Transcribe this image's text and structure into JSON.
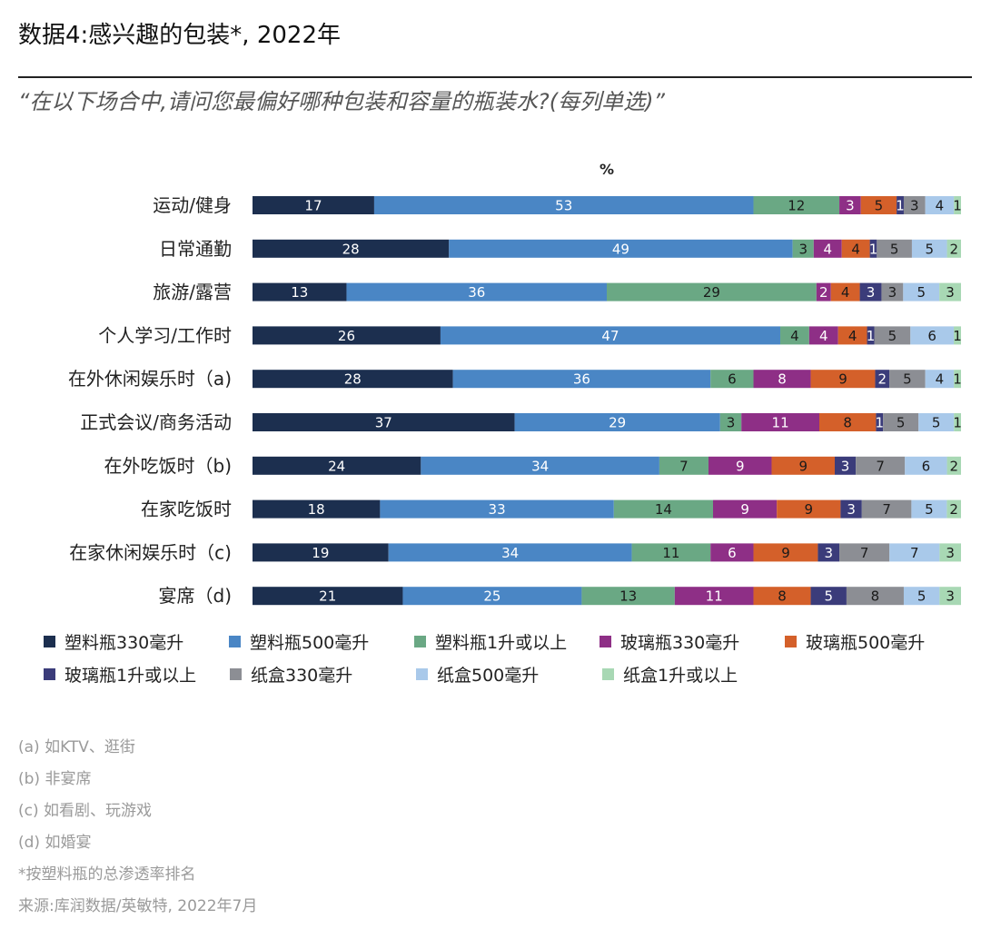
{
  "page": {
    "title": "数据4:感兴趣的包装*, 2022年",
    "subtitle": "“在以下场合中,请问您最偏好哪种包装和容量的瓶装水?(每列单选)”"
  },
  "chart_data": {
    "type": "bar",
    "orientation": "horizontal",
    "stacked": true,
    "unit_label": "%",
    "categories": [
      "运动/健身",
      "日常通勤",
      "旅游/露营",
      "个人学习/工作时",
      "在外休闲娱乐时（a)",
      "正式会议/商务活动",
      "在外吃饭时（b)",
      "在家吃饭时",
      "在家休闲娱乐时（c)",
      "宴席（d)"
    ],
    "series": [
      {
        "name": "塑料瓶330毫升",
        "color": "#1c2f4f",
        "text_color": "#ffffff",
        "values": [
          17,
          28,
          13,
          26,
          28,
          37,
          24,
          18,
          19,
          21
        ]
      },
      {
        "name": "塑料瓶500毫升",
        "color": "#4a86c5",
        "text_color": "#ffffff",
        "values": [
          53,
          49,
          36,
          47,
          36,
          29,
          34,
          33,
          34,
          25
        ]
      },
      {
        "name": "塑料瓶1升或以上",
        "color": "#6aa884",
        "text_color": "#1a1a1a",
        "values": [
          12,
          3,
          29,
          4,
          6,
          3,
          7,
          14,
          11,
          13
        ]
      },
      {
        "name": "玻璃瓶330毫升",
        "color": "#8e2f86",
        "text_color": "#ffffff",
        "values": [
          3,
          4,
          2,
          4,
          8,
          11,
          9,
          9,
          6,
          11
        ]
      },
      {
        "name": "玻璃瓶500毫升",
        "color": "#d4602a",
        "text_color": "#1a1a1a",
        "values": [
          5,
          4,
          4,
          4,
          9,
          8,
          9,
          9,
          9,
          8
        ]
      },
      {
        "name": "玻璃瓶1升或以上",
        "color": "#3b3c7a",
        "text_color": "#ffffff",
        "values": [
          1,
          1,
          3,
          1,
          2,
          1,
          3,
          3,
          3,
          5
        ]
      },
      {
        "name": "纸盒330毫升",
        "color": "#8c8e94",
        "text_color": "#1a1a1a",
        "values": [
          3,
          5,
          3,
          5,
          5,
          5,
          7,
          7,
          7,
          8
        ]
      },
      {
        "name": "纸盒500毫升",
        "color": "#a9c9ea",
        "text_color": "#1a1a1a",
        "values": [
          4,
          5,
          5,
          6,
          4,
          5,
          6,
          5,
          7,
          5
        ]
      },
      {
        "name": "纸盒1升或以上",
        "color": "#a8d8b4",
        "text_color": "#1a1a1a",
        "values": [
          1,
          2,
          3,
          1,
          1,
          1,
          2,
          2,
          3,
          3
        ]
      }
    ]
  },
  "notes": [
    "(a) 如KTV、逛街",
    "(b) 非宴席",
    "(c) 如看剧、玩游戏",
    "(d) 如婚宴",
    "*按塑料瓶的总渗透率排名",
    "来源:库润数据/英敏特, 2022年7月"
  ]
}
